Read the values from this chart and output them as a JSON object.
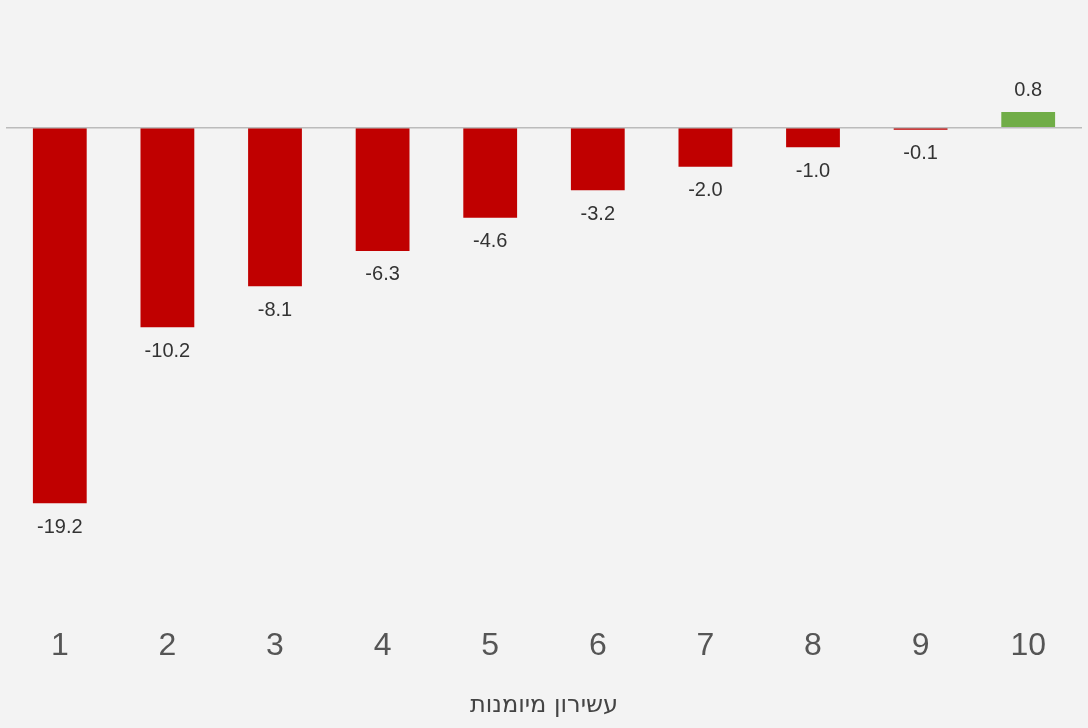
{
  "chart_data": {
    "type": "bar",
    "xlabel": "עשירון מיומנות",
    "categories": [
      "1",
      "2",
      "3",
      "4",
      "5",
      "6",
      "7",
      "8",
      "9",
      "10"
    ],
    "values": [
      -19.2,
      -10.2,
      -8.1,
      -6.3,
      -4.6,
      -3.2,
      -2.0,
      -1.0,
      -0.1,
      0.8
    ],
    "colors": [
      "#c00000",
      "#c00000",
      "#c00000",
      "#c00000",
      "#c00000",
      "#c00000",
      "#c00000",
      "#c00000",
      "#c00000",
      "#70ad47"
    ],
    "value_labels": [
      "-19.2",
      "-10.2",
      "-8.1",
      "-6.3",
      "-4.6",
      "-3.2",
      "-2.0",
      "-1.0",
      "-0.1",
      "0.8"
    ],
    "grid": false,
    "legend": false
  }
}
